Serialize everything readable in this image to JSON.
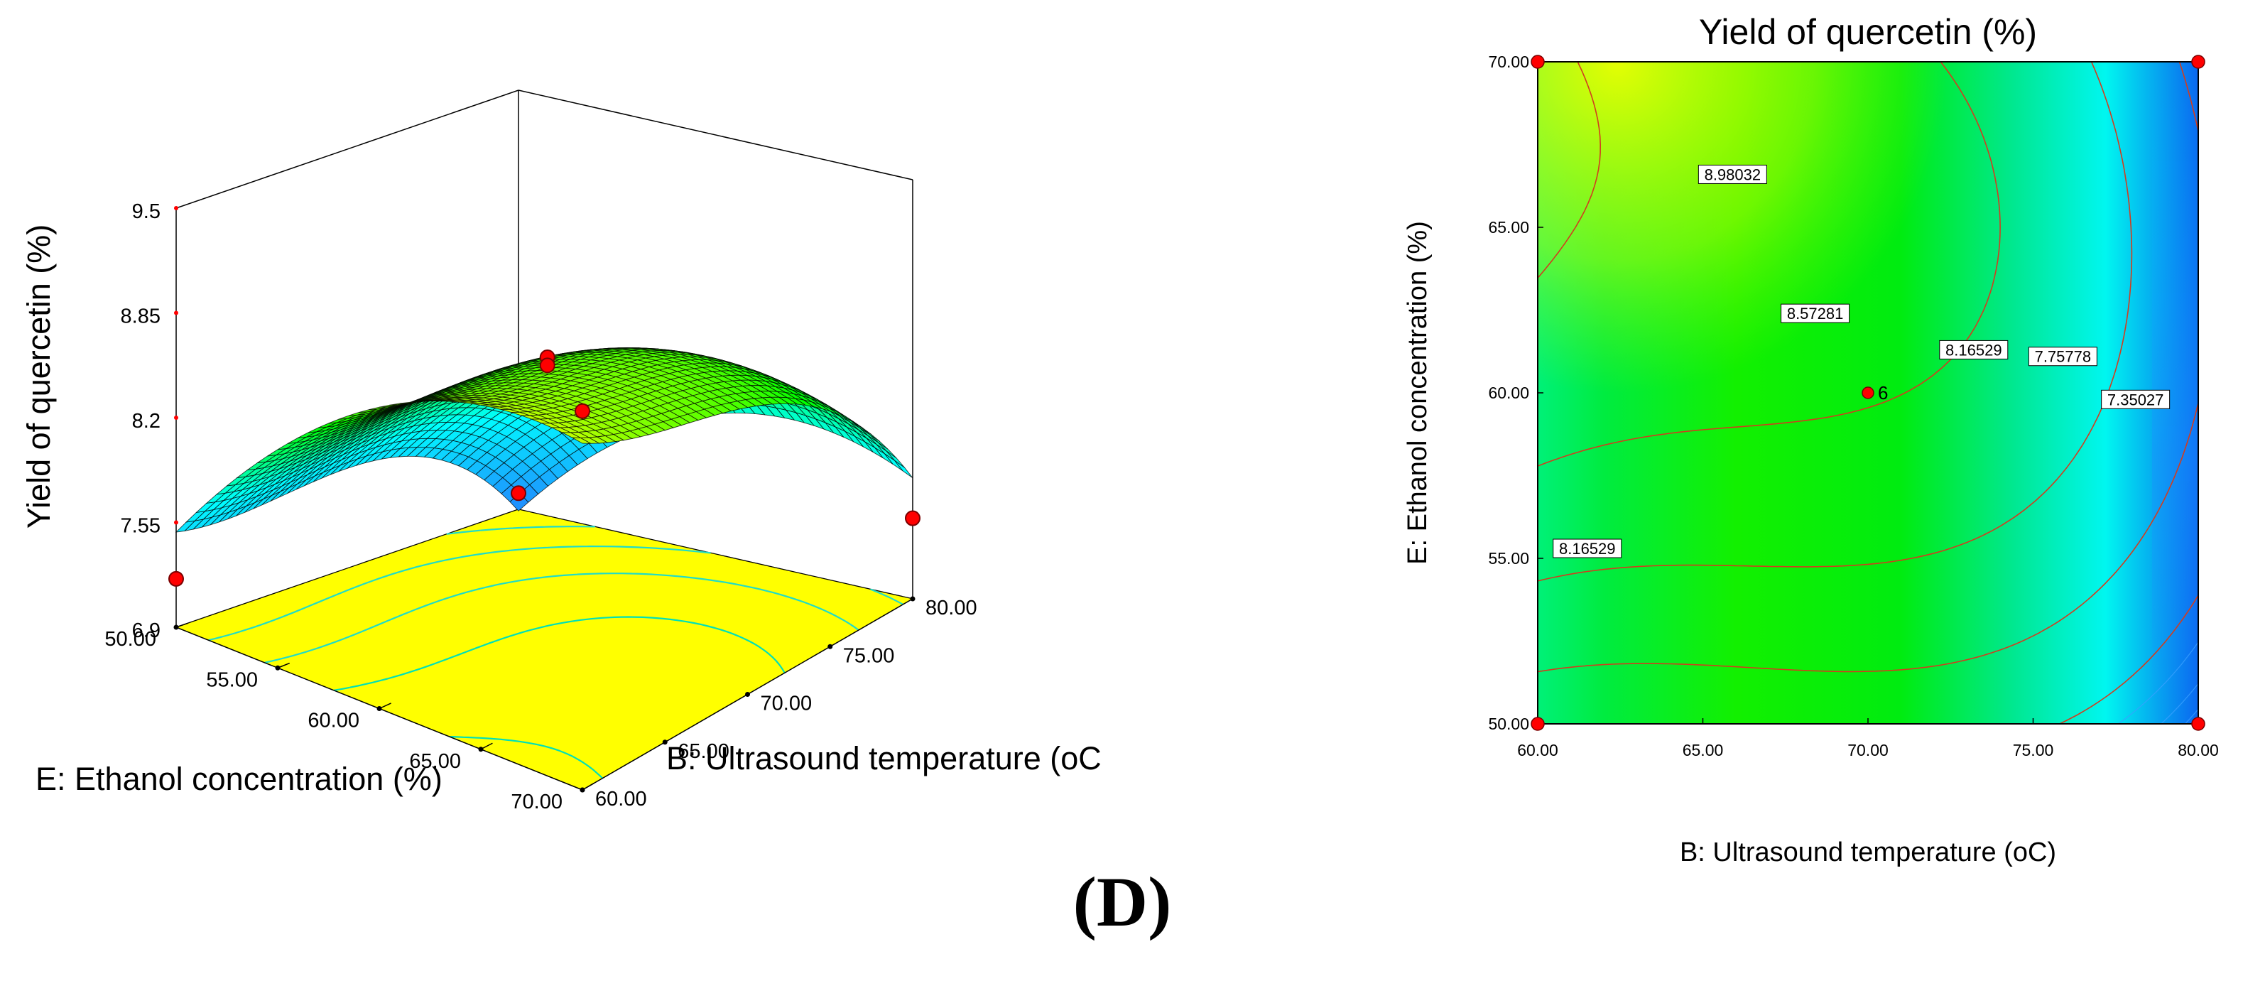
{
  "panel_label": "(D)",
  "chart_data": [
    {
      "type": "surface",
      "title": "",
      "zlabel": "Yield of quercetin (%)",
      "xlabel": "B: Ultrasound temperature (oC",
      "ylabel": "E: Ethanol concentration (%)",
      "x_ticks": [
        "60.00",
        "65.00",
        "70.00",
        "75.00",
        "80.00"
      ],
      "y_ticks": [
        "50.00",
        "55.00",
        "60.00",
        "65.00",
        "70.00"
      ],
      "z_ticks": [
        "6.9",
        "7.55",
        "8.2",
        "8.85",
        "9.5"
      ],
      "xlim": [
        60,
        80
      ],
      "ylim": [
        50,
        70
      ],
      "zlim": [
        6.9,
        9.5
      ],
      "surface_colormap": [
        "#1e90ff",
        "#00ffff",
        "#00ff00",
        "#ffff00"
      ],
      "floor_color": "#ffff00",
      "design_points": [
        {
          "x": 60,
          "y": 50,
          "z": 7.2
        },
        {
          "x": 80,
          "y": 50,
          "z": 7.0
        },
        {
          "x": 60,
          "y": 70,
          "z": 9.25
        },
        {
          "x": 80,
          "y": 70,
          "z": 7.4
        },
        {
          "x": 70,
          "y": 60,
          "z": 8.6
        },
        {
          "x": 70,
          "y": 60,
          "z": 8.55
        }
      ]
    },
    {
      "type": "contour",
      "title": "Yield of quercetin (%)",
      "xlabel": "B: Ultrasound temperature (oC)",
      "ylabel": "E: Ethanol concentration (%)",
      "x_ticks": [
        "60.00",
        "65.00",
        "70.00",
        "75.00",
        "80.00"
      ],
      "y_ticks": [
        "50.00",
        "55.00",
        "60.00",
        "65.00",
        "70.00"
      ],
      "xlim": [
        60,
        80
      ],
      "ylim": [
        50,
        70
      ],
      "contour_levels": [
        "8.98032",
        "8.57281",
        "8.16529",
        "7.75778",
        "7.35027",
        "8.16529"
      ],
      "level_label_positions": [
        {
          "label": "8.98032",
          "x": 65.9,
          "y": 66.6
        },
        {
          "label": "8.57281",
          "x": 68.4,
          "y": 62.4
        },
        {
          "label": "8.16529",
          "x": 73.2,
          "y": 61.3
        },
        {
          "label": "7.75778",
          "x": 75.9,
          "y": 61.1
        },
        {
          "label": "7.35027",
          "x": 78.1,
          "y": 59.8
        },
        {
          "label": "8.16529",
          "x": 61.5,
          "y": 55.3
        }
      ],
      "center_point": {
        "x": 70,
        "y": 60,
        "label": "6"
      },
      "design_points": [
        {
          "x": 60,
          "y": 50
        },
        {
          "x": 80,
          "y": 50
        },
        {
          "x": 60,
          "y": 70
        },
        {
          "x": 80,
          "y": 70
        }
      ]
    }
  ]
}
